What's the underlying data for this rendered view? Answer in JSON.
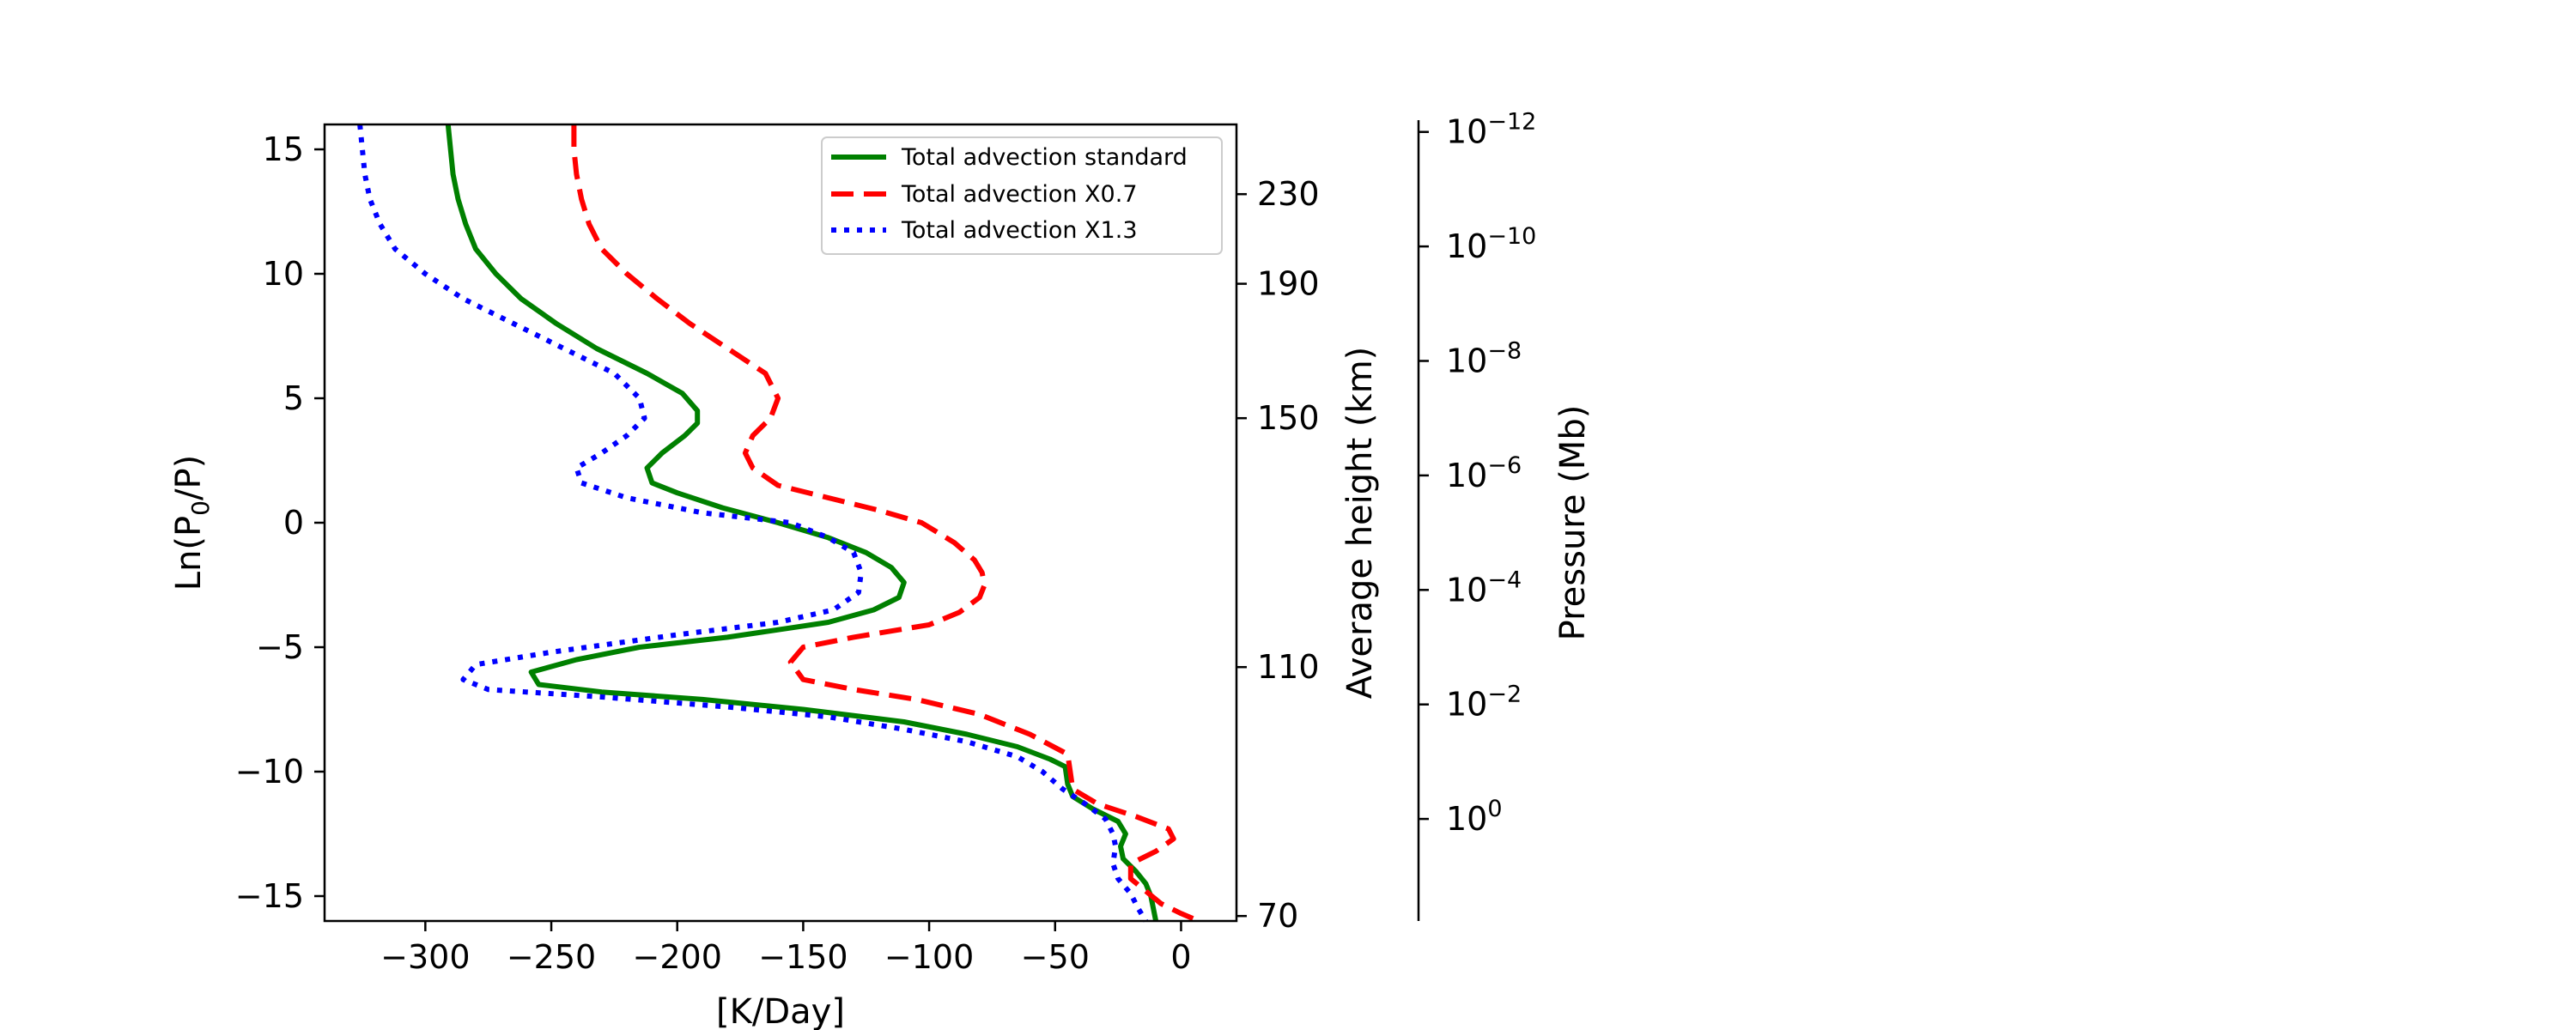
{
  "chart_data": {
    "type": "line",
    "xlabel": "[K/Day]",
    "ylabel": "Ln(P",
    "ylabel_sub": "0",
    "ylabel_tail": "/P)",
    "y2label": "Average height (km)",
    "y3label": "Pressure (Mb)",
    "xlim": [
      -340,
      22
    ],
    "ylim": [
      -16,
      16
    ],
    "grid": false,
    "legend_position": "top-right",
    "x_ticks": [
      {
        "v": -300,
        "label": "−300"
      },
      {
        "v": -250,
        "label": "−250"
      },
      {
        "v": -200,
        "label": "−200"
      },
      {
        "v": -150,
        "label": "−150"
      },
      {
        "v": -100,
        "label": "−100"
      },
      {
        "v": -50,
        "label": "−50"
      },
      {
        "v": 0,
        "label": "0"
      }
    ],
    "y_ticks": [
      {
        "v": 15,
        "label": "15"
      },
      {
        "v": 10,
        "label": "10"
      },
      {
        "v": 5,
        "label": "5"
      },
      {
        "v": 0,
        "label": "0"
      },
      {
        "v": -5,
        "label": "−5"
      },
      {
        "v": -10,
        "label": "−10"
      },
      {
        "v": -15,
        "label": "−15"
      }
    ],
    "height_ticks": [
      {
        "v": 13.2,
        "label": "230"
      },
      {
        "v": 9.6,
        "label": "190"
      },
      {
        "v": 4.2,
        "label": "150"
      },
      {
        "v": -5.8,
        "label": "110"
      },
      {
        "v": -15.8,
        "label": "70"
      }
    ],
    "pressure_ticks": [
      {
        "v": 15.7,
        "base": "10",
        "exp": "−12"
      },
      {
        "v": 11.1,
        "base": "10",
        "exp": "−10"
      },
      {
        "v": 6.5,
        "base": "10",
        "exp": "−8"
      },
      {
        "v": 1.9,
        "base": "10",
        "exp": "−6"
      },
      {
        "v": -2.7,
        "base": "10",
        "exp": "−4"
      },
      {
        "v": -7.3,
        "base": "10",
        "exp": "−2"
      },
      {
        "v": -11.9,
        "base": "10",
        "exp": "0"
      }
    ],
    "series": [
      {
        "name": "Total advection standard",
        "color": "#008000",
        "style": "solid",
        "points": [
          [
            -291,
            16
          ],
          [
            -290,
            15
          ],
          [
            -289,
            14
          ],
          [
            -287,
            13
          ],
          [
            -284,
            12
          ],
          [
            -280,
            11
          ],
          [
            -272,
            10
          ],
          [
            -262,
            9
          ],
          [
            -248,
            8
          ],
          [
            -232,
            7
          ],
          [
            -212,
            6
          ],
          [
            -198,
            5.2
          ],
          [
            -192,
            4.5
          ],
          [
            -192,
            4
          ],
          [
            -197,
            3.5
          ],
          [
            -206,
            2.8
          ],
          [
            -212,
            2.2
          ],
          [
            -210,
            1.6
          ],
          [
            -200,
            1.2
          ],
          [
            -182,
            0.6
          ],
          [
            -160,
            0
          ],
          [
            -140,
            -0.6
          ],
          [
            -125,
            -1.2
          ],
          [
            -115,
            -1.8
          ],
          [
            -110,
            -2.4
          ],
          [
            -112,
            -3
          ],
          [
            -122,
            -3.5
          ],
          [
            -140,
            -4
          ],
          [
            -180,
            -4.6
          ],
          [
            -215,
            -5
          ],
          [
            -240,
            -5.5
          ],
          [
            -258,
            -6
          ],
          [
            -255,
            -6.5
          ],
          [
            -230,
            -6.8
          ],
          [
            -190,
            -7.1
          ],
          [
            -150,
            -7.5
          ],
          [
            -110,
            -8
          ],
          [
            -85,
            -8.5
          ],
          [
            -65,
            -9
          ],
          [
            -52,
            -9.5
          ],
          [
            -46,
            -9.8
          ],
          [
            -45,
            -10.5
          ],
          [
            -43,
            -11
          ],
          [
            -35,
            -11.5
          ],
          [
            -25,
            -12
          ],
          [
            -22,
            -12.5
          ],
          [
            -24,
            -13
          ],
          [
            -23,
            -13.5
          ],
          [
            -18,
            -14
          ],
          [
            -14,
            -14.5
          ],
          [
            -12,
            -15
          ],
          [
            -11,
            -15.5
          ],
          [
            -10,
            -16
          ]
        ]
      },
      {
        "name": "Total advection X0.7",
        "color": "#ff0000",
        "style": "dashed",
        "points": [
          [
            -241,
            16
          ],
          [
            -241,
            15
          ],
          [
            -240,
            14
          ],
          [
            -238,
            13
          ],
          [
            -235,
            12
          ],
          [
            -230,
            11
          ],
          [
            -220,
            10
          ],
          [
            -208,
            9
          ],
          [
            -195,
            8
          ],
          [
            -180,
            7
          ],
          [
            -165,
            6
          ],
          [
            -160,
            5
          ],
          [
            -163,
            4.2
          ],
          [
            -170,
            3.5
          ],
          [
            -173,
            2.8
          ],
          [
            -170,
            2.2
          ],
          [
            -160,
            1.5
          ],
          [
            -140,
            1
          ],
          [
            -120,
            0.5
          ],
          [
            -103,
            0
          ],
          [
            -90,
            -0.8
          ],
          [
            -82,
            -1.5
          ],
          [
            -79,
            -2
          ],
          [
            -78,
            -2.5
          ],
          [
            -80,
            -3
          ],
          [
            -88,
            -3.6
          ],
          [
            -100,
            -4.1
          ],
          [
            -130,
            -4.6
          ],
          [
            -150,
            -5
          ],
          [
            -155,
            -5.6
          ],
          [
            -150,
            -6.3
          ],
          [
            -130,
            -6.7
          ],
          [
            -105,
            -7.1
          ],
          [
            -80,
            -7.7
          ],
          [
            -60,
            -8.5
          ],
          [
            -45,
            -9.3
          ],
          [
            -44,
            -10
          ],
          [
            -43,
            -10.7
          ],
          [
            -33,
            -11.3
          ],
          [
            -18,
            -11.8
          ],
          [
            -5,
            -12.3
          ],
          [
            -3,
            -12.7
          ],
          [
            -10,
            -13.2
          ],
          [
            -20,
            -13.7
          ],
          [
            -20,
            -14.3
          ],
          [
            -14,
            -14.8
          ],
          [
            -8,
            -15.3
          ],
          [
            0,
            -15.7
          ],
          [
            7,
            -16
          ]
        ]
      },
      {
        "name": "Total advection X1.3",
        "color": "#0000ff",
        "style": "dotted",
        "points": [
          [
            -326,
            16
          ],
          [
            -325,
            15
          ],
          [
            -324,
            14
          ],
          [
            -322,
            13
          ],
          [
            -318,
            12
          ],
          [
            -312,
            11
          ],
          [
            -300,
            10
          ],
          [
            -285,
            9
          ],
          [
            -265,
            8
          ],
          [
            -245,
            7
          ],
          [
            -225,
            6
          ],
          [
            -215,
            5
          ],
          [
            -213,
            4.2
          ],
          [
            -220,
            3.5
          ],
          [
            -230,
            2.8
          ],
          [
            -240,
            2.2
          ],
          [
            -238,
            1.6
          ],
          [
            -220,
            1
          ],
          [
            -190,
            0.4
          ],
          [
            -155,
            0
          ],
          [
            -140,
            -0.6
          ],
          [
            -130,
            -1.2
          ],
          [
            -127,
            -2
          ],
          [
            -128,
            -2.8
          ],
          [
            -138,
            -3.5
          ],
          [
            -160,
            -4
          ],
          [
            -200,
            -4.5
          ],
          [
            -250,
            -5.2
          ],
          [
            -280,
            -5.7
          ],
          [
            -285,
            -6.3
          ],
          [
            -275,
            -6.7
          ],
          [
            -230,
            -7
          ],
          [
            -180,
            -7.4
          ],
          [
            -140,
            -7.8
          ],
          [
            -110,
            -8.3
          ],
          [
            -85,
            -8.8
          ],
          [
            -65,
            -9.4
          ],
          [
            -55,
            -10
          ],
          [
            -47,
            -10.7
          ],
          [
            -38,
            -11.3
          ],
          [
            -30,
            -11.9
          ],
          [
            -27,
            -12.5
          ],
          [
            -26,
            -13
          ],
          [
            -27,
            -13.7
          ],
          [
            -25,
            -14.3
          ],
          [
            -20,
            -14.9
          ],
          [
            -17,
            -15.5
          ],
          [
            -14,
            -16
          ]
        ]
      }
    ]
  }
}
